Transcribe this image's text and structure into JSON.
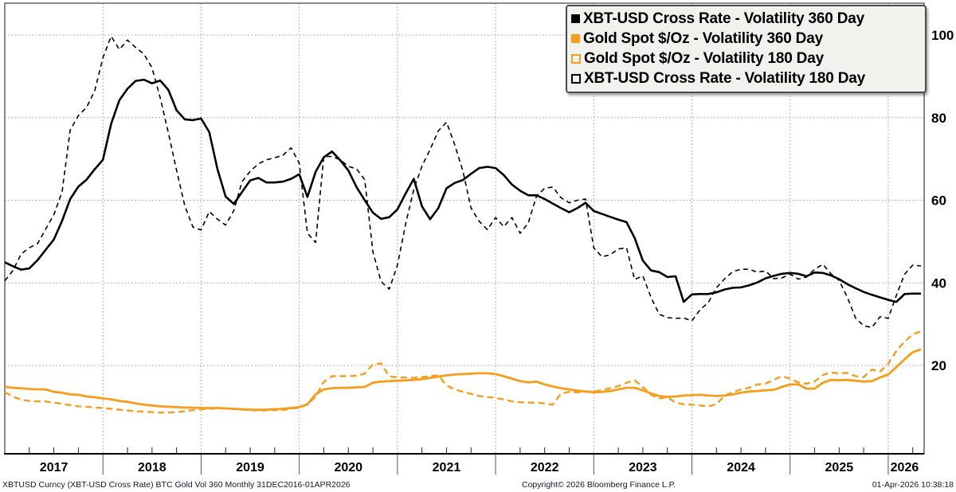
{
  "footer": {
    "left": "XBTUSD Curncy (XBT-USD Cross Rate) BTC Gold Vol 360 Monthly 31DEC2016-01APR2026",
    "center": "Copyright© 2026 Bloomberg Finance L.P.",
    "right": "01-Apr-2026 10:38:18"
  },
  "chart_data": {
    "type": "line",
    "title": "",
    "x": {
      "start": "2016-12",
      "end": "2026-04",
      "step": "monthly",
      "year_labels": [
        "2017",
        "2018",
        "2019",
        "2020",
        "2021",
        "2022",
        "2023",
        "2024",
        "2025",
        "2026"
      ]
    },
    "y": {
      "ticks": [
        20,
        40,
        60,
        80,
        100
      ],
      "range": [
        -1.5,
        107.5
      ],
      "side": "right"
    },
    "grid": "dotted",
    "legend_position": "top-right",
    "series": [
      {
        "name": "XBT-USD Cross Rate - Volatility 360 Day",
        "color": "#000000",
        "style": "solid",
        "width": 2.6,
        "values": [
          45.0,
          44.0,
          43.2,
          43.5,
          45.5,
          48.0,
          50.5,
          55.0,
          60.3,
          63.3,
          65.0,
          67.5,
          69.8,
          78.5,
          84.2,
          87.0,
          88.9,
          89.2,
          88.3,
          89.0,
          86.7,
          81.8,
          79.6,
          79.4,
          79.8,
          76.5,
          67.5,
          60.9,
          59.1,
          62.0,
          64.8,
          65.4,
          64.3,
          64.3,
          64.5,
          65.2,
          66.3,
          60.8,
          66.9,
          70.4,
          71.8,
          69.7,
          67.2,
          63.2,
          60.0,
          57.0,
          55.5,
          55.9,
          57.8,
          61.6,
          65.2,
          58.5,
          55.4,
          58.1,
          62.9,
          64.2,
          64.9,
          66.4,
          67.8,
          68.1,
          67.8,
          66.1,
          63.8,
          62.3,
          61.2,
          61.2,
          60.3,
          59.2,
          58.1,
          57.1,
          58.1,
          59.4,
          57.4,
          56.7,
          56.0,
          55.3,
          54.7,
          50.9,
          45.4,
          43.0,
          42.6,
          41.4,
          41.6,
          35.4,
          37.2,
          37.3,
          37.3,
          37.7,
          38.4,
          38.8,
          38.9,
          39.4,
          40.1,
          41.1,
          41.7,
          42.2,
          42.4,
          42.2,
          41.6,
          42.5,
          42.4,
          41.8,
          40.9,
          39.7,
          38.7,
          37.8,
          37.1,
          36.5,
          35.9,
          35.4,
          37.3,
          37.4,
          37.4
        ]
      },
      {
        "name": "Gold Spot $/Oz - Volatility 360 Day",
        "color": "#f79d1a",
        "style": "solid",
        "width": 2.8,
        "values": [
          14.8,
          14.6,
          14.5,
          14.3,
          14.2,
          14.2,
          13.6,
          13.4,
          13.0,
          12.9,
          12.5,
          12.3,
          12.0,
          11.8,
          11.4,
          11.2,
          10.8,
          10.5,
          10.3,
          10.1,
          10.0,
          9.9,
          9.8,
          9.8,
          9.7,
          9.7,
          9.7,
          9.6,
          9.5,
          9.4,
          9.3,
          9.3,
          9.3,
          9.4,
          9.5,
          9.7,
          9.9,
          10.6,
          13.0,
          14.2,
          14.5,
          14.6,
          14.6,
          14.7,
          14.8,
          15.8,
          16.1,
          16.2,
          16.3,
          16.4,
          16.5,
          16.7,
          17.0,
          17.3,
          17.6,
          17.8,
          17.9,
          18.0,
          18.1,
          18.1,
          17.9,
          17.4,
          16.8,
          16.2,
          15.9,
          16.1,
          15.4,
          14.9,
          14.5,
          14.2,
          13.9,
          13.7,
          13.5,
          13.6,
          13.8,
          14.2,
          14.6,
          14.6,
          14.0,
          13.2,
          12.6,
          12.4,
          12.5,
          12.7,
          12.8,
          12.9,
          12.7,
          12.6,
          12.7,
          13.0,
          13.4,
          13.7,
          13.8,
          14.0,
          14.1,
          14.8,
          15.4,
          15.4,
          14.4,
          14.4,
          15.8,
          16.5,
          16.4,
          16.5,
          16.3,
          16.1,
          16.2,
          17.1,
          17.8,
          19.6,
          21.5,
          23.2,
          23.9
        ]
      },
      {
        "name": "Gold Spot $/Oz - Volatility 180 Day",
        "color": "#f79d1a",
        "style": "dashed",
        "width": 2.4,
        "values": [
          13.5,
          12.5,
          11.7,
          11.4,
          11.3,
          11.3,
          11.0,
          10.7,
          10.4,
          10.1,
          10.0,
          9.8,
          9.7,
          9.5,
          9.3,
          9.1,
          8.9,
          8.8,
          8.7,
          8.6,
          8.6,
          8.7,
          8.9,
          9.2,
          9.4,
          9.5,
          9.6,
          9.6,
          9.5,
          9.3,
          9.2,
          9.1,
          9.1,
          9.2,
          9.2,
          9.5,
          9.8,
          10.5,
          12.5,
          16.0,
          17.4,
          17.4,
          17.4,
          17.5,
          18.0,
          20.3,
          20.5,
          17.4,
          17.1,
          17.1,
          17.0,
          17.2,
          17.4,
          17.6,
          15.2,
          14.2,
          13.6,
          13.1,
          12.6,
          12.4,
          12.1,
          11.8,
          11.3,
          11.1,
          11.0,
          11.0,
          10.8,
          10.5,
          13.2,
          13.6,
          13.5,
          13.6,
          13.7,
          14.0,
          14.5,
          15.0,
          15.8,
          16.4,
          14.8,
          12.9,
          12.0,
          12.3,
          11.0,
          10.6,
          10.5,
          10.3,
          10.1,
          10.6,
          12.7,
          13.5,
          14.2,
          14.6,
          15.4,
          15.6,
          16.5,
          17.4,
          16.8,
          15.9,
          15.6,
          16.1,
          17.7,
          18.3,
          18.1,
          18.2,
          17.4,
          17.2,
          19.0,
          18.5,
          20.4,
          23.5,
          25.8,
          27.5,
          28.3
        ]
      },
      {
        "name": "XBT-USD Cross Rate - Volatility 180 Day",
        "color": "#000000",
        "style": "dashed",
        "width": 1.6,
        "values": [
          40.5,
          43.0,
          47.0,
          48.5,
          49.5,
          53.0,
          56.5,
          62.0,
          77.0,
          80.5,
          82.5,
          86.5,
          94.5,
          99.7,
          96.5,
          98.8,
          97.0,
          95.4,
          92.1,
          84.8,
          76.3,
          67.3,
          58.7,
          53.5,
          52.8,
          57.3,
          55.4,
          54.0,
          57.5,
          64.5,
          67.0,
          68.8,
          69.8,
          70.3,
          70.9,
          72.7,
          69.0,
          52.0,
          49.8,
          70.6,
          70.6,
          69.8,
          68.2,
          67.6,
          65.0,
          47.5,
          40.3,
          38.5,
          44.3,
          54.2,
          62.6,
          68.3,
          72.3,
          76.8,
          78.9,
          73.5,
          67.1,
          58.1,
          54.9,
          52.9,
          55.8,
          53.6,
          55.8,
          52.0,
          54.5,
          61.0,
          62.9,
          63.2,
          60.6,
          59.4,
          60.0,
          60.3,
          48.5,
          46.3,
          46.8,
          48.2,
          48.5,
          40.8,
          41.7,
          36.5,
          32.4,
          31.6,
          31.4,
          31.5,
          30.8,
          33.5,
          35.2,
          38.8,
          41.0,
          42.7,
          43.3,
          43.3,
          42.6,
          42.9,
          41.0,
          41.2,
          42.1,
          40.9,
          41.4,
          43.3,
          44.5,
          42.2,
          40.6,
          36.5,
          31.5,
          29.6,
          29.2,
          31.8,
          31.4,
          37.0,
          42.1,
          44.3,
          44.1
        ]
      }
    ]
  }
}
